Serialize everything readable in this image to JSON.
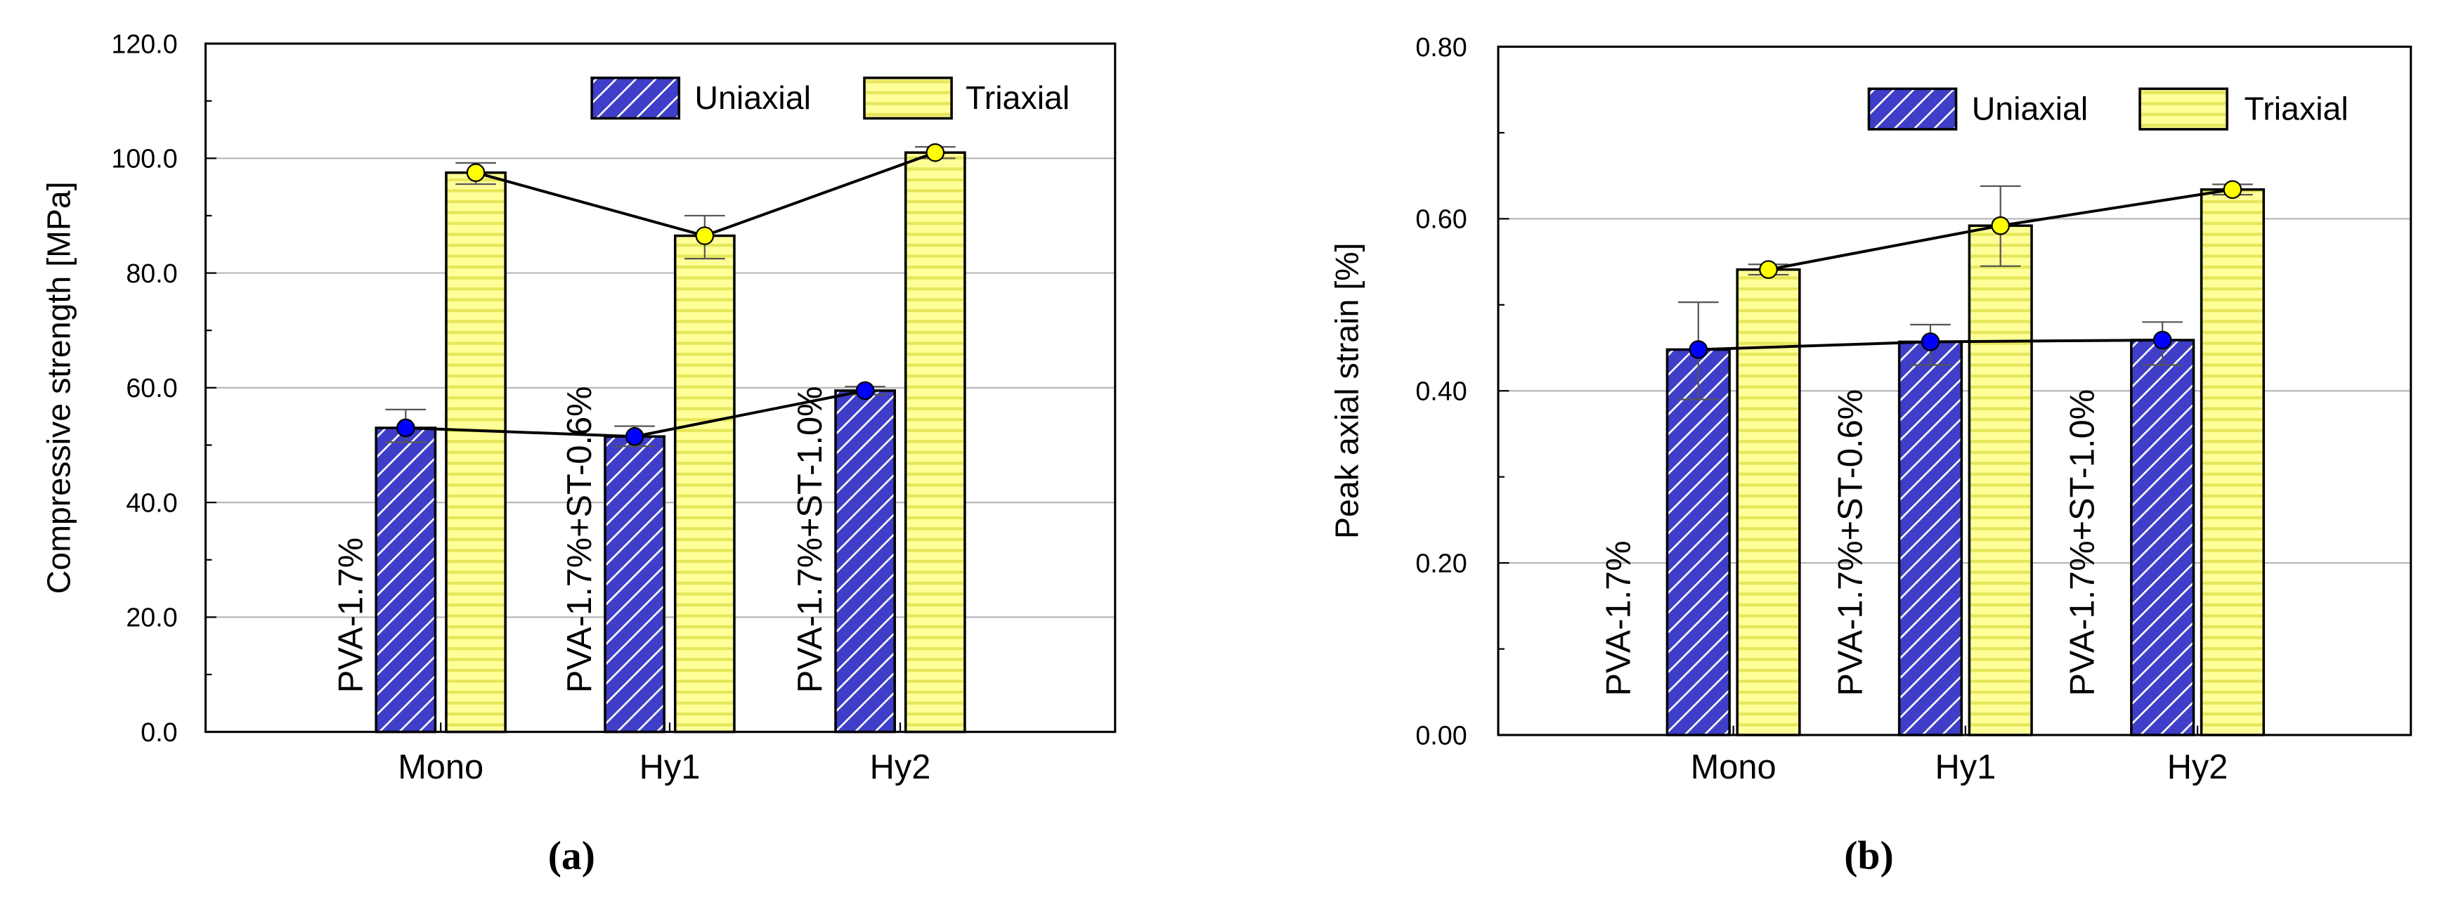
{
  "figure": {
    "panels": [
      "(a)",
      "(b)"
    ]
  },
  "colors": {
    "uniaxial_fill": "#3e3ec8",
    "uniaxial_hatch": "#ffffff",
    "triaxial_fill": "#ffff99",
    "triaxial_hatch": "#e6e65a",
    "uniaxial_marker": "#0000ff",
    "triaxial_marker": "#ffff00",
    "grid": "#b8b8b8",
    "axis": "#000000"
  },
  "chart_data": [
    {
      "type": "bar",
      "caption": "(a)",
      "title": "",
      "xlabel": "",
      "ylabel": "Compressive strength [MPa]",
      "ylim": [
        0,
        120
      ],
      "ytick_step": 20,
      "yminor_step": 10,
      "ytick_decimals": 1,
      "grid": true,
      "legend_position": "top-right",
      "categories": [
        "Mono",
        "Hy1",
        "Hy2"
      ],
      "annotations": [
        "PVA-1.7%",
        "PVA-1.7%+ST-0.6%",
        "PVA-1.7%+ST-1.0%"
      ],
      "series": [
        {
          "name": "Uniaxial",
          "values": [
            53.0,
            51.5,
            59.5
          ],
          "error_low": [
            50.5,
            49.8,
            58.8
          ],
          "error_high": [
            56.2,
            53.3,
            60.2
          ]
        },
        {
          "name": "Triaxial",
          "values": [
            97.5,
            86.5,
            101.0
          ],
          "error_low": [
            95.5,
            82.5,
            100.0
          ],
          "error_high": [
            99.2,
            90.0,
            102.0
          ]
        }
      ]
    },
    {
      "type": "bar",
      "caption": "(b)",
      "title": "",
      "xlabel": "",
      "ylabel": "Peak axial strain [%]",
      "ylim": [
        0,
        0.8
      ],
      "ytick_step": 0.2,
      "yminor_step": 0.1,
      "ytick_decimals": 2,
      "grid": true,
      "legend_position": "top-right",
      "categories": [
        "Mono",
        "Hy1",
        "Hy2"
      ],
      "annotations": [
        "PVA-1.7%",
        "PVA-1.7%+ST-0.6%",
        "PVA-1.7%+ST-1.0%"
      ],
      "series": [
        {
          "name": "Uniaxial",
          "values": [
            0.448,
            0.457,
            0.459
          ],
          "error_low": [
            0.39,
            0.43,
            0.43
          ],
          "error_high": [
            0.503,
            0.477,
            0.48
          ]
        },
        {
          "name": "Triaxial",
          "values": [
            0.541,
            0.592,
            0.634
          ],
          "error_low": [
            0.535,
            0.545,
            0.628
          ],
          "error_high": [
            0.547,
            0.638,
            0.64
          ]
        }
      ]
    }
  ]
}
